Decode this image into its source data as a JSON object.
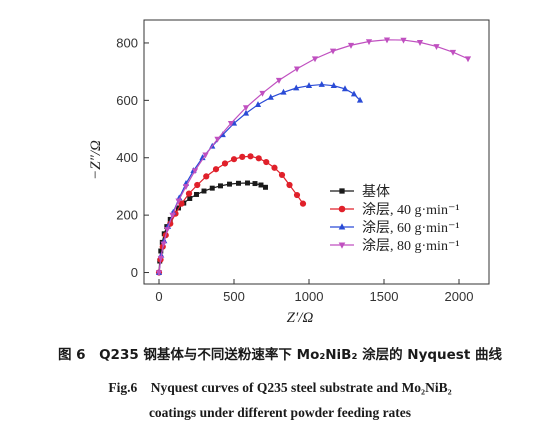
{
  "chart_data": {
    "type": "scatter",
    "xlabel": "Z′/Ω",
    "ylabel": "−Z″/Ω",
    "xlim": [
      -100,
      2200
    ],
    "ylim": [
      -40,
      880
    ],
    "xticks": [
      "0",
      "500",
      "1000",
      "1500",
      "2000"
    ],
    "yticks": [
      "0",
      "200",
      "400",
      "600",
      "800"
    ],
    "grid": false,
    "legend_position": "center-right",
    "series": [
      {
        "name": "基体",
        "color": "#1a1a1a",
        "marker": "square",
        "points": [
          [
            0,
            0
          ],
          [
            5,
            40
          ],
          [
            12,
            75
          ],
          [
            22,
            105
          ],
          [
            35,
            135
          ],
          [
            52,
            160
          ],
          [
            75,
            185
          ],
          [
            100,
            205
          ],
          [
            130,
            225
          ],
          [
            165,
            242
          ],
          [
            205,
            258
          ],
          [
            250,
            272
          ],
          [
            300,
            284
          ],
          [
            355,
            294
          ],
          [
            410,
            302
          ],
          [
            470,
            308
          ],
          [
            530,
            311
          ],
          [
            590,
            312
          ],
          [
            640,
            310
          ],
          [
            680,
            305
          ],
          [
            710,
            297
          ]
        ]
      },
      {
        "name": "涂层, 40 g·min⁻¹",
        "color": "#e0202a",
        "marker": "circle",
        "points": [
          [
            0,
            0
          ],
          [
            10,
            45
          ],
          [
            25,
            90
          ],
          [
            45,
            130
          ],
          [
            75,
            170
          ],
          [
            110,
            205
          ],
          [
            150,
            240
          ],
          [
            200,
            275
          ],
          [
            255,
            305
          ],
          [
            315,
            335
          ],
          [
            380,
            360
          ],
          [
            440,
            380
          ],
          [
            500,
            395
          ],
          [
            555,
            403
          ],
          [
            610,
            405
          ],
          [
            665,
            398
          ],
          [
            715,
            385
          ],
          [
            770,
            365
          ],
          [
            820,
            340
          ],
          [
            870,
            305
          ],
          [
            920,
            270
          ],
          [
            960,
            240
          ]
        ]
      },
      {
        "name": "涂层, 60 g·min⁻¹",
        "color": "#2a4bd6",
        "marker": "triangle-up",
        "points": [
          [
            0,
            0
          ],
          [
            15,
            60
          ],
          [
            35,
            110
          ],
          [
            60,
            160
          ],
          [
            95,
            210
          ],
          [
            135,
            260
          ],
          [
            180,
            310
          ],
          [
            230,
            355
          ],
          [
            290,
            400
          ],
          [
            355,
            440
          ],
          [
            425,
            480
          ],
          [
            500,
            520
          ],
          [
            580,
            555
          ],
          [
            660,
            585
          ],
          [
            745,
            610
          ],
          [
            830,
            628
          ],
          [
            915,
            643
          ],
          [
            1000,
            651
          ],
          [
            1085,
            655
          ],
          [
            1165,
            651
          ],
          [
            1240,
            640
          ],
          [
            1300,
            622
          ],
          [
            1340,
            600
          ]
        ]
      },
      {
        "name": "涂层, 80 g·min⁻¹",
        "color": "#c050c0",
        "marker": "triangle-down",
        "points": [
          [
            0,
            0
          ],
          [
            12,
            50
          ],
          [
            30,
            100
          ],
          [
            55,
            150
          ],
          [
            90,
            200
          ],
          [
            130,
            250
          ],
          [
            180,
            300
          ],
          [
            240,
            355
          ],
          [
            310,
            410
          ],
          [
            390,
            465
          ],
          [
            480,
            520
          ],
          [
            580,
            575
          ],
          [
            690,
            625
          ],
          [
            800,
            670
          ],
          [
            920,
            710
          ],
          [
            1040,
            745
          ],
          [
            1160,
            772
          ],
          [
            1280,
            792
          ],
          [
            1400,
            805
          ],
          [
            1520,
            811
          ],
          [
            1630,
            810
          ],
          [
            1740,
            802
          ],
          [
            1850,
            788
          ],
          [
            1960,
            768
          ],
          [
            2060,
            745
          ]
        ]
      }
    ]
  },
  "caption": {
    "chinese": "图 6　Q235 钢基体与不同送粉速率下 Mo₂NiB₂ 涂层的 Nyquest 曲线",
    "english_line1": "Fig.6　Nyquest curves of Q235 steel substrate and Mo₂NiB₂",
    "english_line2": "coatings under different powder feeding rates"
  }
}
